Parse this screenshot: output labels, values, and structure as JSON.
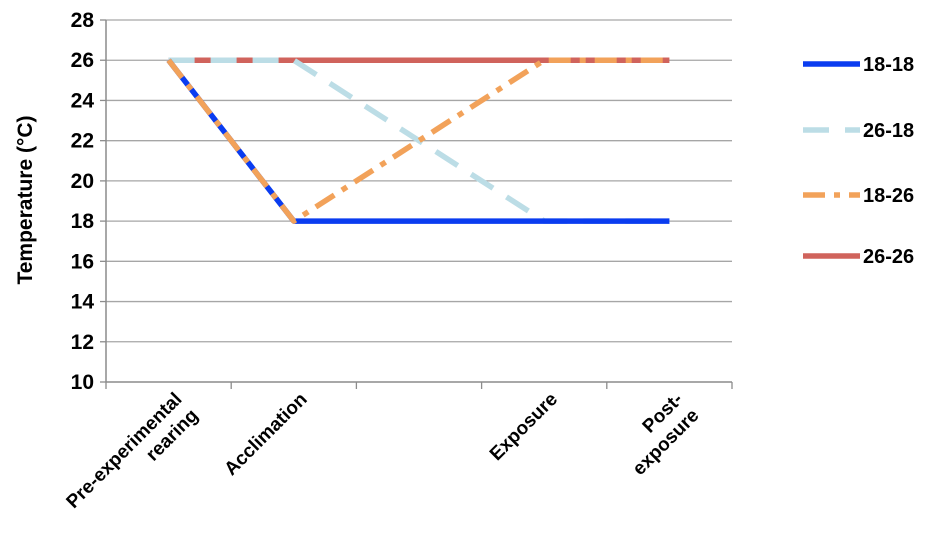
{
  "chart_data": {
    "type": "line",
    "title": "",
    "xlabel": "",
    "ylabel": "Temperature (°C)",
    "ylim": [
      10,
      28
    ],
    "yticks": [
      10,
      12,
      14,
      16,
      18,
      20,
      22,
      24,
      26,
      28
    ],
    "grid": true,
    "legend_position": "right",
    "categories": [
      [
        "Pre-experimental",
        "rearing"
      ],
      [
        "Acclimation"
      ],
      [
        "Exposure"
      ],
      [
        "Post-",
        "exposure"
      ]
    ],
    "x_positions": [
      0.5,
      1.5,
      3.5,
      4.5
    ],
    "series": [
      {
        "name": "18-18",
        "color": "#0a3cf0",
        "dash": "solid",
        "points": [
          [
            0.5,
            26
          ],
          [
            1.5,
            18
          ],
          [
            3.5,
            18
          ],
          [
            4.5,
            18
          ]
        ]
      },
      {
        "name": "26-18",
        "color": "#bcdde6",
        "dash": "dashed",
        "points": [
          [
            0.5,
            26
          ],
          [
            1.5,
            26
          ],
          [
            3.5,
            18
          ],
          [
            4.5,
            18
          ]
        ]
      },
      {
        "name": "18-26",
        "color": "#f2a25a",
        "dash": "dashdot",
        "points": [
          [
            0.5,
            26
          ],
          [
            1.5,
            18
          ],
          [
            3.5,
            26
          ],
          [
            4.5,
            26
          ]
        ]
      },
      {
        "name": "26-26",
        "color": "#d0635c",
        "dash": "solid",
        "points": [
          [
            0.5,
            26
          ],
          [
            1.5,
            26
          ],
          [
            3.5,
            26
          ],
          [
            4.5,
            26
          ]
        ]
      }
    ]
  }
}
